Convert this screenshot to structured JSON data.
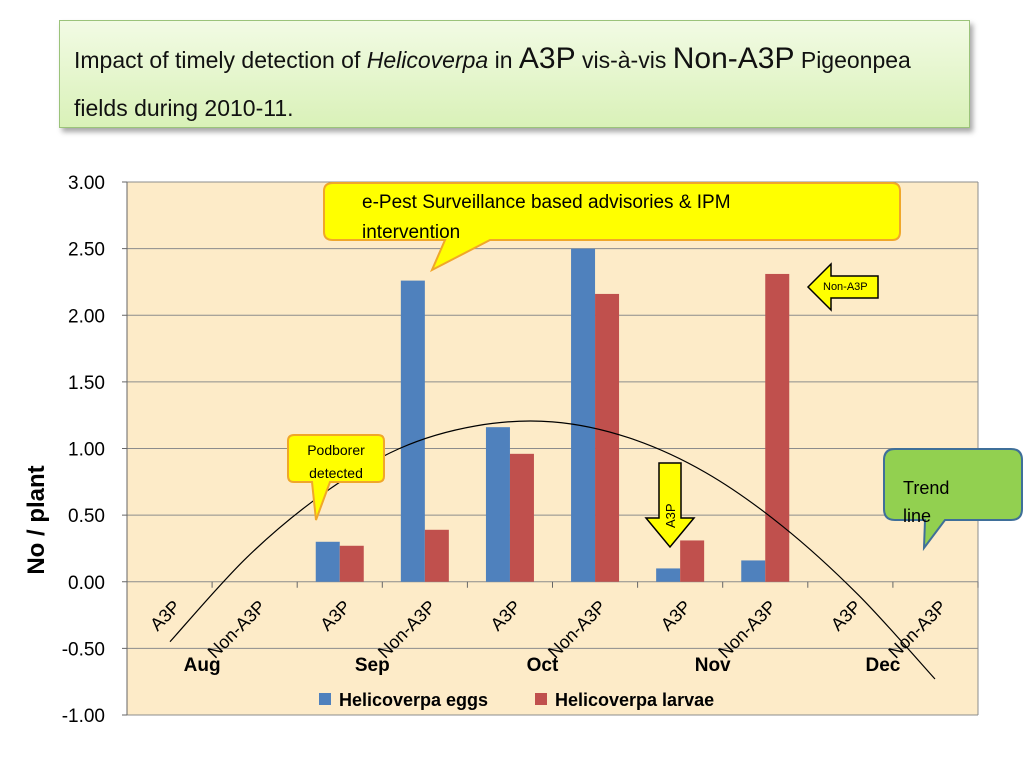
{
  "title": {
    "p1": "Impact of  timely detection of ",
    "p2": "Helicoverpa",
    "p3": " in ",
    "p4": "A3P",
    "p5": " vis-à-vis ",
    "p6": "Non-A3P",
    "p7": " Pigeonpea fields during 2010-11."
  },
  "chart_data": {
    "type": "bar",
    "ylabel": "No / plant",
    "ylim": [
      -1.0,
      3.0
    ],
    "yticks": [
      3.0,
      2.5,
      2.0,
      1.5,
      1.0,
      0.5,
      0.0,
      -0.5,
      -1.0
    ],
    "yticks_labels": [
      "3.00",
      "2.50",
      "2.00",
      "1.50",
      "1.00",
      "0.50",
      "0.00",
      "-0.50",
      "-1.00"
    ],
    "categories": [
      "A3P",
      "Non-A3P",
      "A3P",
      "Non-A3P",
      "A3P",
      "Non-A3P",
      "A3P",
      "Non-A3P",
      "A3P",
      "Non-A3P"
    ],
    "months": [
      "Aug",
      "Sep",
      "Oct",
      "Nov",
      "Dec"
    ],
    "series": [
      {
        "name": "Helicoverpa eggs",
        "color": "#4f81bd",
        "values": [
          0,
          0,
          0.3,
          2.26,
          1.16,
          2.5,
          0.1,
          0.16,
          0,
          0
        ]
      },
      {
        "name": "Helicoverpa larvae",
        "color": "#c0504d",
        "values": [
          0,
          0,
          0.27,
          0.39,
          0.96,
          2.16,
          0.31,
          2.31,
          0,
          0
        ]
      }
    ],
    "trend": [
      -0.45,
      0.18,
      0.66,
      1.0,
      1.17,
      1.2,
      1.08,
      0.82,
      0.42,
      -0.1,
      -0.73
    ],
    "legend_position": "bottom",
    "grid": true,
    "annotations": {
      "advisory": "e-Pest Surveillance based  advisories & IPM",
      "advisory2": "intervention",
      "podborer": "Podborer",
      "podborer2": "detected",
      "trend": "Trend",
      "trend2": "line",
      "arrow_a3p": "A3P",
      "arrow_non": "Non-A3P"
    }
  }
}
